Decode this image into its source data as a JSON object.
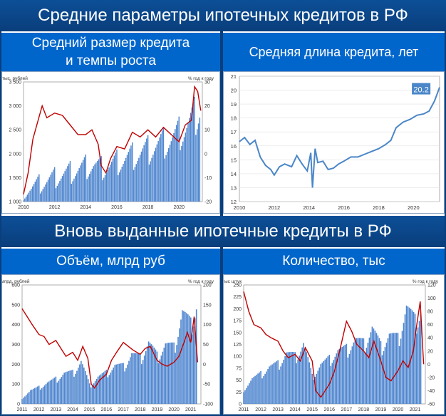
{
  "page": {
    "title_top": "Средние параметры ипотечных кредитов в РФ",
    "title_mid": "Вновь выданные ипотечные кредиты в РФ"
  },
  "panels": {
    "p1_title_line1": "Средний размер кредита",
    "p1_title_line2": "и темпы роста",
    "p2_title": "Средняя длина кредита, лет",
    "p3_title": "Объём, млрд руб",
    "p4_title": "Количество, тыс"
  },
  "colors": {
    "bar": "#4f86cf",
    "line_red": "#c00000",
    "line_blue": "#4a86c8",
    "header_dark": "#0a3e7c",
    "header_blue": "#0066cc"
  },
  "chart_data": [
    {
      "id": "avg-loan-size",
      "type": "bar+line",
      "left_axis_label": "тыс. рублей",
      "right_axis_label": "% год к году",
      "ylim_left": [
        1000,
        3500
      ],
      "yticks_left": [
        "1 000",
        "1 500",
        "2 000",
        "2 500",
        "3 000",
        "3 500"
      ],
      "ylim_right": [
        -20,
        30
      ],
      "yticks_right": [
        "-20",
        "-10",
        "0",
        "10",
        "20",
        "30"
      ],
      "xlim": [
        2010,
        2021.5
      ],
      "xticks": [
        "2010",
        "2012",
        "2014",
        "2016",
        "2018",
        "2020"
      ],
      "bars_x": [
        2010,
        2010.5,
        2011,
        2011.5,
        2012,
        2012.5,
        2013,
        2013.5,
        2014,
        2014.5,
        2015,
        2015.5,
        2016,
        2016.5,
        2017,
        2017.5,
        2018,
        2018.5,
        2019,
        2019.5,
        2020,
        2020.5,
        2021,
        2021.4
      ],
      "bars_y": [
        1250,
        1290,
        1370,
        1430,
        1500,
        1560,
        1610,
        1670,
        1730,
        1770,
        1700,
        1740,
        1820,
        1880,
        1950,
        2010,
        2080,
        2160,
        2230,
        2300,
        2420,
        2580,
        2780,
        3000
      ],
      "line_x": [
        2010,
        2010.3,
        2010.6,
        2010.9,
        2011.2,
        2011.5,
        2012,
        2012.5,
        2013,
        2013.5,
        2014,
        2014.4,
        2014.8,
        2015,
        2015.3,
        2015.6,
        2016,
        2016.5,
        2017,
        2017.5,
        2018,
        2018.5,
        2019,
        2019.5,
        2020,
        2020.4,
        2020.8,
        2021,
        2021.2,
        2021.4
      ],
      "line_y": [
        -17,
        -8,
        6,
        13,
        20,
        15,
        17,
        16,
        12,
        8,
        8,
        10,
        4,
        -5,
        -8,
        -2,
        3,
        2,
        9,
        7,
        10,
        7,
        11,
        8,
        5,
        12,
        14,
        28,
        26,
        18
      ]
    },
    {
      "id": "avg-loan-term",
      "type": "line",
      "ylim": [
        12,
        21
      ],
      "yticks": [
        "12",
        "13",
        "14",
        "15",
        "16",
        "17",
        "18",
        "19",
        "20",
        "21"
      ],
      "xlim": [
        2010,
        2021.5
      ],
      "xticks": [
        "2010",
        "2012",
        "2014",
        "2016",
        "2018",
        "2020"
      ],
      "annotation": "20.2",
      "x": [
        2010,
        2010.3,
        2010.6,
        2010.9,
        2011.2,
        2011.5,
        2011.8,
        2012,
        2012.3,
        2012.6,
        2013,
        2013.3,
        2013.6,
        2013.9,
        2014.1,
        2014.2,
        2014.35,
        2014.5,
        2014.8,
        2015.1,
        2015.4,
        2015.7,
        2016,
        2016.4,
        2016.8,
        2017.2,
        2017.6,
        2018,
        2018.4,
        2018.7,
        2019,
        2019.4,
        2019.8,
        2020.2,
        2020.6,
        2020.9,
        2021.2,
        2021.5
      ],
      "y": [
        16.3,
        16.6,
        16.1,
        16.4,
        15.2,
        14.6,
        14.3,
        13.9,
        14.5,
        14.7,
        14.5,
        15.3,
        14.7,
        14.2,
        15.5,
        13.0,
        15.8,
        14.8,
        14.9,
        14.3,
        14.4,
        14.7,
        14.9,
        15.2,
        15.2,
        15.4,
        15.6,
        15.8,
        16.1,
        16.4,
        17.3,
        17.7,
        17.9,
        18.2,
        18.3,
        18.5,
        19.2,
        20.2
      ]
    },
    {
      "id": "new-loan-volume",
      "type": "bar+line",
      "left_axis_label": "млрд. рублей",
      "right_axis_label": "% год к году",
      "ylim_left": [
        0,
        600
      ],
      "yticks_left": [
        "0",
        "100",
        "200",
        "300",
        "400",
        "500",
        "600"
      ],
      "ylim_right": [
        -100,
        200
      ],
      "yticks_right": [
        "-100",
        "-50",
        "0",
        "50",
        "100",
        "150",
        "200"
      ],
      "xlim": [
        2011,
        2021.6
      ],
      "xticks": [
        "2011",
        "2012",
        "2013",
        "2014",
        "2015",
        "2016",
        "2017",
        "2018",
        "2019",
        "2020",
        "2021"
      ],
      "bars_x": [
        2011,
        2011.5,
        2012,
        2012.5,
        2013,
        2013.5,
        2014,
        2014.5,
        2015,
        2015.5,
        2016,
        2016.5,
        2017,
        2017.5,
        2018,
        2018.5,
        2019,
        2019.5,
        2020,
        2020.5,
        2021,
        2021.4
      ],
      "bars_y": [
        30,
        70,
        80,
        110,
        120,
        160,
        150,
        220,
        90,
        140,
        150,
        200,
        180,
        260,
        220,
        320,
        230,
        310,
        270,
        480,
        380,
        540
      ],
      "line_x": [
        2011,
        2011.3,
        2011.6,
        2012,
        2012.3,
        2012.6,
        2013,
        2013.3,
        2013.6,
        2014,
        2014.3,
        2014.6,
        2014.9,
        2015.1,
        2015.3,
        2015.6,
        2016,
        2016.3,
        2016.6,
        2017,
        2017.3,
        2017.6,
        2018,
        2018.3,
        2018.6,
        2019,
        2019.3,
        2019.6,
        2020,
        2020.3,
        2020.6,
        2020.8,
        2021,
        2021.2,
        2021.4
      ],
      "line_y": [
        140,
        120,
        100,
        75,
        70,
        50,
        60,
        40,
        20,
        30,
        10,
        45,
        15,
        -50,
        -60,
        -40,
        -25,
        10,
        30,
        55,
        45,
        35,
        25,
        40,
        45,
        10,
        0,
        -5,
        5,
        20,
        55,
        80,
        55,
        120,
        5
      ]
    },
    {
      "id": "new-loan-count",
      "type": "bar+line",
      "left_axis_label": "тыс штук",
      "right_axis_label": "% год к году",
      "ylim_left": [
        0,
        250
      ],
      "yticks_left": [
        "0",
        "25",
        "50",
        "75",
        "100",
        "125",
        "150",
        "175",
        "200",
        "225",
        "250"
      ],
      "ylim_right": [
        -60,
        120
      ],
      "yticks_right": [
        "-60",
        "-40",
        "-20",
        "0",
        "20",
        "40",
        "60",
        "80",
        "100",
        "120"
      ],
      "xlim": [
        2011,
        2021.6
      ],
      "xticks": [
        "2011",
        "2012",
        "2013",
        "2014",
        "2015",
        "2016",
        "2017",
        "2018",
        "2019",
        "2020",
        "2021"
      ],
      "bars_x": [
        2011,
        2011.5,
        2012,
        2012.5,
        2013,
        2013.5,
        2014,
        2014.5,
        2015,
        2015.5,
        2016,
        2016.5,
        2017,
        2017.5,
        2018,
        2018.5,
        2019,
        2019.5,
        2020,
        2020.5,
        2021,
        2021.4
      ],
      "bars_y": [
        30,
        55,
        60,
        80,
        80,
        110,
        95,
        130,
        55,
        85,
        90,
        115,
        110,
        140,
        120,
        165,
        115,
        150,
        130,
        210,
        165,
        210
      ],
      "line_x": [
        2011,
        2011.3,
        2011.6,
        2012,
        2012.3,
        2012.6,
        2013,
        2013.3,
        2013.6,
        2014,
        2014.3,
        2014.6,
        2015,
        2015.2,
        2015.5,
        2016,
        2016.3,
        2016.6,
        2017,
        2017.3,
        2017.6,
        2018,
        2018.3,
        2018.6,
        2019,
        2019.3,
        2019.6,
        2020,
        2020.3,
        2020.6,
        2020.9,
        2021.1,
        2021.3,
        2021.5
      ],
      "line_y": [
        110,
        80,
        60,
        55,
        45,
        40,
        35,
        20,
        10,
        15,
        5,
        25,
        5,
        -40,
        -50,
        -30,
        -10,
        20,
        65,
        50,
        30,
        20,
        10,
        35,
        5,
        -20,
        -25,
        -10,
        5,
        -5,
        20,
        60,
        95,
        0
      ]
    }
  ]
}
